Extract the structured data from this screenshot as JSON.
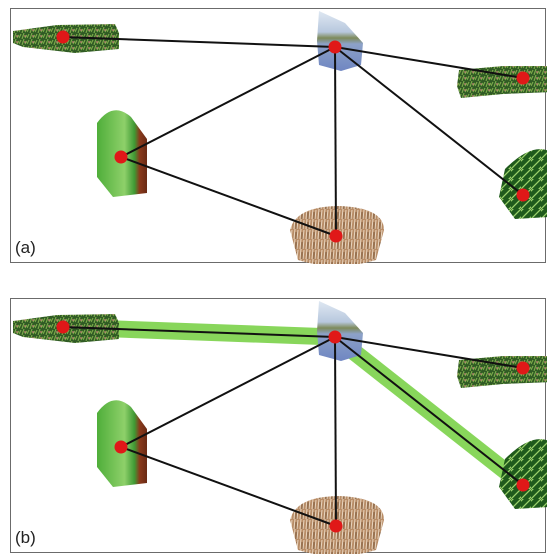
{
  "panels": [
    {
      "label": "(a)",
      "highlighted_edges": []
    },
    {
      "label": "(b)",
      "highlighted_edges": [
        [
          "n1",
          "n0"
        ],
        [
          "n0",
          "n5"
        ]
      ]
    }
  ],
  "graph": {
    "nodes": [
      {
        "id": "n0",
        "texture": "water-sky-icon"
      },
      {
        "id": "n1",
        "texture": "grass-strip-icon"
      },
      {
        "id": "n2",
        "texture": "grass-strip-icon"
      },
      {
        "id": "n3",
        "texture": "foliage-green-red-icon"
      },
      {
        "id": "n4",
        "texture": "dry-grass-icon"
      },
      {
        "id": "n5",
        "texture": "fern-icon"
      }
    ],
    "edges": [
      [
        "n1",
        "n0"
      ],
      [
        "n0",
        "n2"
      ],
      [
        "n0",
        "n3"
      ],
      [
        "n0",
        "n4"
      ],
      [
        "n0",
        "n5"
      ],
      [
        "n3",
        "n4"
      ]
    ]
  },
  "colors": {
    "node_dot": "#e01818",
    "edge": "#111111",
    "highlight": "#7cd24a"
  }
}
